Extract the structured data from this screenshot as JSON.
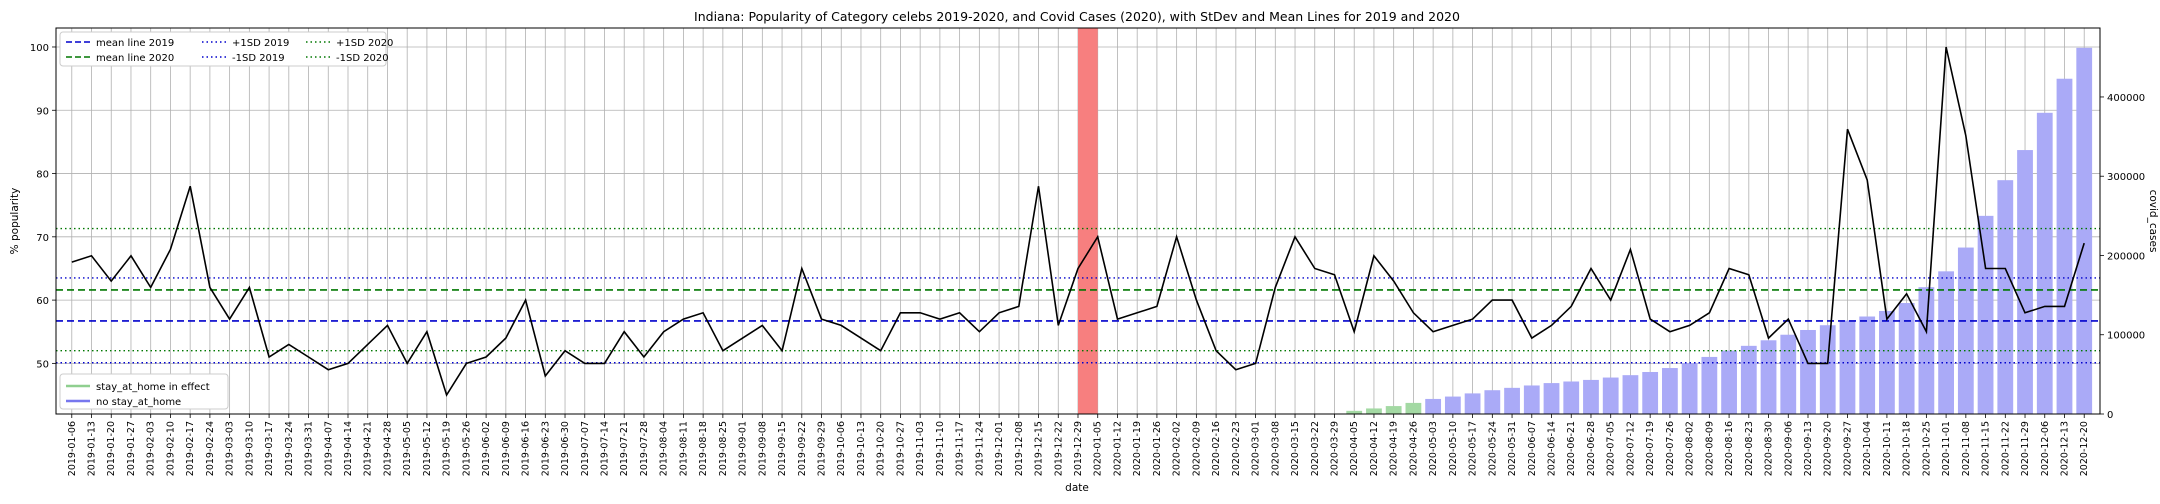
{
  "chart_data": {
    "type": "bar+line",
    "title": "Indiana: Popularity of Category celebs 2019-2020, and Covid Cases (2020), with StDev and Mean Lines for 2019 and 2020",
    "xlabel": "date",
    "ylabel": "% popularity",
    "y2label": "covid_cases",
    "ylim": [
      42,
      103
    ],
    "y2lim": [
      0,
      487000
    ],
    "yticks": [
      50,
      60,
      70,
      80,
      90,
      100
    ],
    "y2ticks": [
      0,
      100000,
      200000,
      300000,
      400000
    ],
    "grid": true,
    "dates": [
      "2019-01-06",
      "2019-01-13",
      "2019-01-20",
      "2019-01-27",
      "2019-02-03",
      "2019-02-10",
      "2019-02-17",
      "2019-02-24",
      "2019-03-03",
      "2019-03-10",
      "2019-03-17",
      "2019-03-24",
      "2019-03-31",
      "2019-04-07",
      "2019-04-14",
      "2019-04-21",
      "2019-04-28",
      "2019-05-05",
      "2019-05-12",
      "2019-05-19",
      "2019-05-26",
      "2019-06-02",
      "2019-06-09",
      "2019-06-16",
      "2019-06-23",
      "2019-06-30",
      "2019-07-07",
      "2019-07-14",
      "2019-07-21",
      "2019-07-28",
      "2019-08-04",
      "2019-08-11",
      "2019-08-18",
      "2019-08-25",
      "2019-09-01",
      "2019-09-08",
      "2019-09-15",
      "2019-09-22",
      "2019-09-29",
      "2019-10-06",
      "2019-10-13",
      "2019-10-20",
      "2019-10-27",
      "2019-11-03",
      "2019-11-10",
      "2019-11-17",
      "2019-11-24",
      "2019-12-01",
      "2019-12-08",
      "2019-12-15",
      "2019-12-22",
      "2019-12-29",
      "2020-01-05",
      "2020-01-12",
      "2020-01-19",
      "2020-01-26",
      "2020-02-02",
      "2020-02-09",
      "2020-02-16",
      "2020-02-23",
      "2020-03-01",
      "2020-03-08",
      "2020-03-15",
      "2020-03-22",
      "2020-03-29",
      "2020-04-05",
      "2020-04-12",
      "2020-04-19",
      "2020-04-26",
      "2020-05-03",
      "2020-05-10",
      "2020-05-17",
      "2020-05-24",
      "2020-05-31",
      "2020-06-07",
      "2020-06-14",
      "2020-06-21",
      "2020-06-28",
      "2020-07-05",
      "2020-07-12",
      "2020-07-19",
      "2020-07-26",
      "2020-08-02",
      "2020-08-09",
      "2020-08-16",
      "2020-08-23",
      "2020-08-30",
      "2020-09-06",
      "2020-09-13",
      "2020-09-20",
      "2020-09-27",
      "2020-10-04",
      "2020-10-11",
      "2020-10-18",
      "2020-10-25",
      "2020-11-01",
      "2020-11-08",
      "2020-11-15",
      "2020-11-22",
      "2020-11-29",
      "2020-12-06",
      "2020-12-13",
      "2020-12-20"
    ],
    "popularity": [
      66,
      67,
      63,
      67,
      62,
      68,
      78,
      62,
      57,
      62,
      51,
      53,
      51,
      49,
      50,
      53,
      56,
      50,
      55,
      45,
      50,
      51,
      54,
      60,
      48,
      52,
      50,
      50,
      55,
      51,
      55,
      57,
      58,
      52,
      54,
      56,
      52,
      65,
      57,
      56,
      54,
      52,
      58,
      58,
      57,
      58,
      55,
      58,
      59,
      78,
      56,
      65,
      70,
      57,
      58,
      59,
      70,
      60,
      52,
      49,
      50,
      62,
      70,
      65,
      64,
      55,
      67,
      63,
      58,
      55,
      56,
      57,
      60,
      60,
      54,
      56,
      59,
      65,
      60,
      68,
      57,
      55,
      56,
      58,
      65,
      64,
      54,
      57,
      50,
      50,
      87,
      79,
      57,
      61,
      55,
      100,
      86,
      65,
      65,
      58,
      59,
      59,
      69
    ],
    "covid_cases": [
      0,
      0,
      0,
      0,
      0,
      0,
      0,
      0,
      0,
      0,
      0,
      0,
      0,
      0,
      0,
      0,
      0,
      0,
      0,
      0,
      0,
      0,
      0,
      0,
      0,
      0,
      0,
      0,
      0,
      0,
      0,
      0,
      0,
      0,
      0,
      0,
      0,
      0,
      0,
      0,
      0,
      0,
      0,
      0,
      0,
      0,
      0,
      0,
      0,
      0,
      0,
      0,
      0,
      0,
      0,
      0,
      0,
      0,
      0,
      0,
      0,
      0,
      0,
      0,
      0,
      4000,
      7000,
      10000,
      14000,
      19000,
      22000,
      26000,
      30000,
      33000,
      36000,
      39000,
      41000,
      43000,
      46000,
      49000,
      53000,
      58000,
      64000,
      72000,
      80000,
      86000,
      93000,
      100000,
      106000,
      112000,
      118000,
      123000,
      130000,
      140000,
      160000,
      180000,
      210000,
      250000,
      295000,
      333000,
      380000,
      423000,
      462000
    ],
    "stay_at_home_range": [
      "2020-04-05",
      "2020-04-26"
    ],
    "highlight_date": "2020-01-05",
    "reference_lines": {
      "mean_2019": 56.7,
      "mean_2020": 61.6,
      "plus_sd_2019": 63.5,
      "minus_sd_2019": 50.1,
      "plus_sd_2020": 71.3,
      "minus_sd_2020": 52.0
    },
    "legend_top": [
      {
        "label": "mean line 2019",
        "color": "#0000cc",
        "dash": "dashed"
      },
      {
        "label": "+1SD 2019",
        "color": "#0000cc",
        "dash": "dotted"
      },
      {
        "label": "+1SD 2020",
        "color": "#007700",
        "dash": "dotted"
      },
      {
        "label": "mean line 2020",
        "color": "#007700",
        "dash": "dashed"
      },
      {
        "label": "-1SD 2019",
        "color": "#0000cc",
        "dash": "dotted"
      },
      {
        "label": "-1SD 2020",
        "color": "#007700",
        "dash": "dotted"
      }
    ],
    "legend_bottom": [
      {
        "label": "stay_at_home in effect",
        "color": "#8fcf8f"
      },
      {
        "label": "no stay_at_home",
        "color": "#7777ee"
      }
    ],
    "legend_top_placement": "upper-left",
    "legend_bottom_placement": "lower-left",
    "colors": {
      "line": "#000000",
      "bar_default": "#aaaaf7",
      "bar_stay_home": "#a3d9a3",
      "highlight": "#f77f7f",
      "mean_2019": "#0000cc",
      "mean_2020": "#007700"
    }
  }
}
